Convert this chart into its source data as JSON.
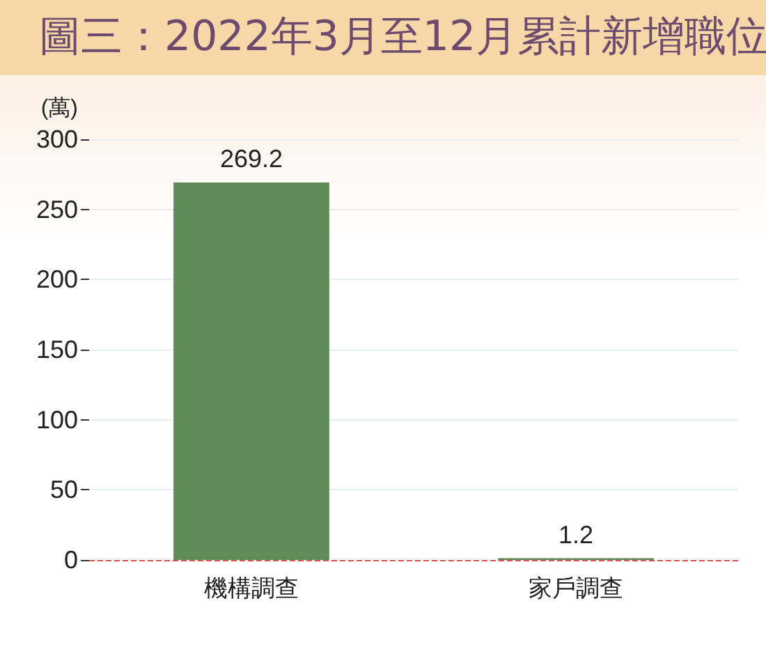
{
  "chart_data": {
    "type": "bar",
    "title": "圖三：2022年3月至12月累計新增職位",
    "ylabel": "(萬)",
    "categories": [
      "機構調查",
      "家戶調查"
    ],
    "values": [
      269.2,
      1.2
    ],
    "color": "#5e8b58",
    "ylim": [
      0,
      300
    ],
    "yticks": [
      0,
      50,
      100,
      150,
      200,
      250,
      300
    ],
    "grid": "y",
    "data_labels": true,
    "ref_lines": [
      {
        "axis": "y",
        "value": 0,
        "color": "#d9534f",
        "line_style": "dashed"
      }
    ]
  }
}
